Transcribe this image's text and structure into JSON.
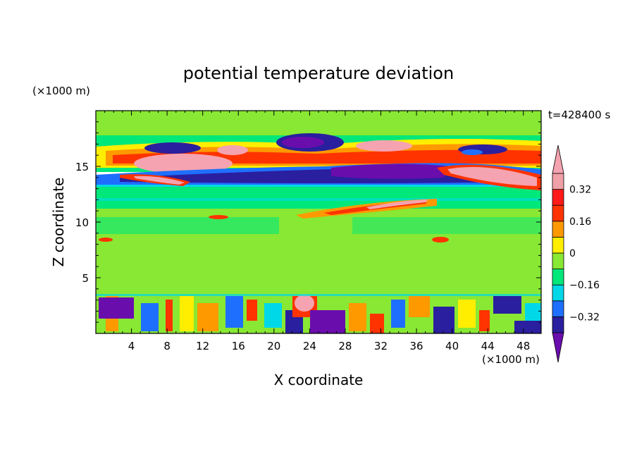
{
  "chart_data": {
    "type": "heatmap",
    "title": "potential temperature deviation",
    "xlabel": "X coordinate",
    "ylabel": "Z coordinate",
    "x_unit": "(×1000 m)",
    "y_unit": "(×1000 m)",
    "time_label": "t=428400 s",
    "xlim": [
      0,
      50
    ],
    "ylim": [
      0,
      20
    ],
    "x_ticks": [
      4,
      8,
      12,
      16,
      20,
      24,
      28,
      32,
      36,
      40,
      44,
      48
    ],
    "y_ticks": [
      5,
      10,
      15
    ],
    "colorbar": {
      "levels": [
        -0.4,
        -0.32,
        -0.24,
        -0.16,
        -0.08,
        0,
        0.08,
        0.16,
        0.24,
        0.32,
        0.4
      ],
      "labeled_levels": [
        0.32,
        0.16,
        0,
        -0.16,
        -0.32
      ],
      "tick_labels": [
        "0.32",
        "0.16",
        "0",
        "−0.16",
        "−0.32"
      ],
      "colors": [
        "#6a0dad",
        "#2a1f9e",
        "#1f6fff",
        "#00d8e8",
        "#00e87a",
        "#88e833",
        "#ffee00",
        "#ff9900",
        "#ff3300",
        "#ff1a1a",
        "#f0a0a8",
        "#f5a3b0"
      ],
      "extend": "both"
    },
    "regions": [
      {
        "x": [
          0,
          50
        ],
        "z": [
          0,
          3.6
        ],
        "theta": "mixed"
      },
      {
        "x": [
          0,
          50
        ],
        "z": [
          3.6,
          9
        ],
        "theta": 0.06
      },
      {
        "x": [
          0,
          50
        ],
        "z": [
          9,
          13
        ],
        "theta": 0.02
      },
      {
        "x": [
          22,
          38
        ],
        "z": [
          10.8,
          12.4
        ],
        "theta": 0.28
      },
      {
        "x": [
          4,
          50
        ],
        "z": [
          13.3,
          15
        ],
        "theta": -0.34
      },
      {
        "x": [
          24,
          48
        ],
        "z": [
          13.5,
          15.2
        ],
        "theta": -0.38
      },
      {
        "x": [
          40,
          50
        ],
        "z": [
          13.2,
          15.2
        ],
        "theta": 0.42
      },
      {
        "x": [
          4,
          14
        ],
        "z": [
          14.6,
          15.8
        ],
        "theta": 0.42
      },
      {
        "x": [
          0,
          50
        ],
        "z": [
          15.2,
          17.8
        ],
        "theta": 0.2
      },
      {
        "x": [
          5,
          14
        ],
        "z": [
          16.2,
          17.2
        ],
        "theta": -0.34
      },
      {
        "x": [
          21,
          30
        ],
        "z": [
          16.4,
          18
        ],
        "theta": -0.38
      },
      {
        "x": [
          32,
          36
        ],
        "z": [
          16.6,
          17.4
        ],
        "theta": 0.42
      },
      {
        "x": [
          0,
          50
        ],
        "z": [
          17.8,
          20
        ],
        "theta": 0.06
      }
    ]
  }
}
